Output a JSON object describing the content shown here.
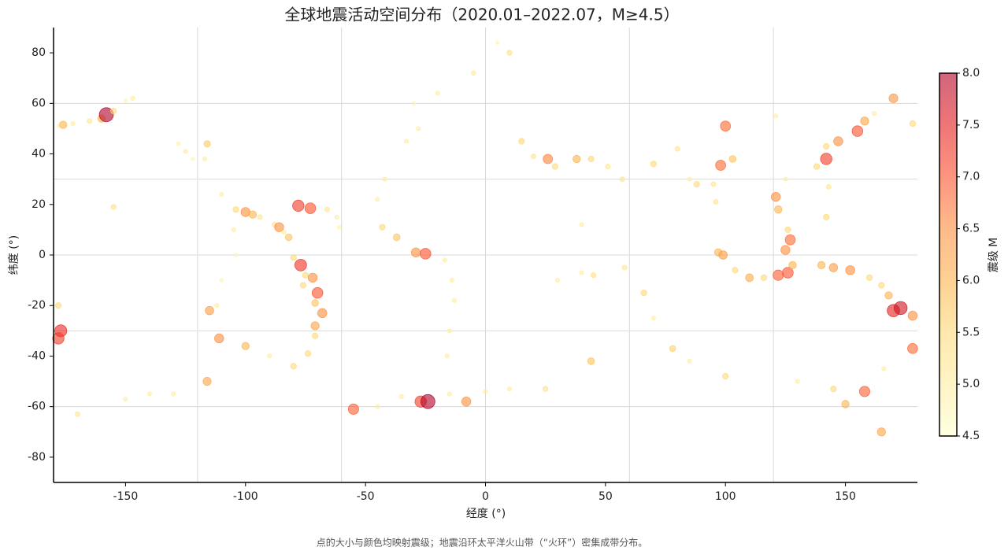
{
  "chart_data": {
    "type": "scatter",
    "title": "全球地震活动空间分布（2020.01–2022.07，M≥4.5）",
    "xlabel": "经度 (°)",
    "ylabel": "纬度 (°)",
    "caption": "点的大小与颜色均映射震级；地震沿环太平洋火山带（“火环”）密集成带分布。",
    "xlim": [
      -180,
      180
    ],
    "ylim": [
      -90,
      90
    ],
    "xticks": [
      -150,
      -100,
      -50,
      0,
      50,
      100,
      150
    ],
    "yticks": [
      -80,
      -60,
      -40,
      -20,
      0,
      20,
      40,
      60,
      80
    ],
    "xgrid": [
      -120,
      -60,
      0,
      60,
      120
    ],
    "ygrid": [
      -60,
      -30,
      0,
      30,
      60
    ],
    "grid": true,
    "colorbar_label": "震级 M",
    "clim": [
      4.5,
      8
    ],
    "cticks": [
      4.5,
      {
        "value": 5,
        "label": "5.0"
      },
      5.5,
      {
        "value": 6,
        "label": "6.0"
      },
      6.5,
      {
        "value": 7,
        "label": "7.0"
      },
      7.5,
      {
        "value": 8,
        "label": "8.0"
      }
    ],
    "colormap": [
      "#ffffcc",
      "#ffeda0",
      "#fed976",
      "#feb24c",
      "#fd8d3c",
      "#fc4e2a",
      "#e31a1c",
      "#b10026"
    ],
    "alpha": 0.6,
    "x": [
      -178,
      -172,
      -165,
      -160,
      -158,
      -155,
      -150,
      -147,
      -155,
      -125,
      -122,
      -128,
      -116,
      -117,
      -110,
      -104,
      -100,
      -97,
      -94,
      -88,
      -86,
      -84,
      -82,
      -78,
      -73,
      -66,
      -62,
      -61,
      -105,
      -104,
      -110,
      -112,
      -115,
      -111,
      -100,
      -90,
      -80,
      -116,
      -80,
      -77,
      -75,
      -76,
      -70,
      -71,
      -68,
      -71,
      -71,
      -74,
      -72,
      -55,
      -45,
      -35,
      -27,
      -24,
      -8,
      -15,
      -150,
      -140,
      -130,
      -170,
      -30,
      -20,
      -28,
      -33,
      -42,
      -45,
      -43,
      -37,
      -29,
      -25,
      -17,
      -14,
      -13,
      -15,
      -16,
      0,
      10,
      25,
      10,
      5,
      -5,
      15,
      20,
      26,
      29,
      38,
      44,
      51,
      57,
      70,
      80,
      88,
      95,
      98,
      103,
      85,
      96,
      40,
      45,
      58,
      66,
      70,
      78,
      85,
      100,
      130,
      145,
      150,
      44,
      30,
      40,
      97,
      99,
      104,
      110,
      116,
      122,
      126,
      128,
      125,
      127,
      126,
      122,
      121,
      125,
      138,
      142,
      142,
      147,
      155,
      158,
      162,
      140,
      145,
      152,
      160,
      165,
      168,
      170,
      173,
      178,
      -178,
      -177,
      -178,
      178,
      166,
      165,
      158,
      142,
      143,
      100,
      121,
      170,
      178,
      -176
    ],
    "y": [
      51,
      52,
      53,
      54,
      55.5,
      57,
      61,
      62,
      19,
      41,
      38,
      44,
      44,
      38,
      24,
      18,
      17,
      16,
      15,
      12,
      11,
      9,
      7,
      19.5,
      18.5,
      18,
      15,
      11,
      10,
      0,
      -10,
      -20,
      -22,
      -33,
      -36,
      -40,
      -44,
      -50,
      -1,
      -4,
      -8,
      -12,
      -15,
      -19,
      -23,
      -28,
      -32,
      -39,
      -9,
      -61,
      -60,
      -56,
      -58,
      -58,
      -58,
      -55,
      -57,
      -55,
      -55,
      -63,
      60,
      64,
      50,
      45,
      30,
      22,
      11,
      7,
      1,
      0.5,
      -2,
      -10,
      -18,
      -30,
      -40,
      -54,
      -53,
      -53,
      80,
      84,
      72,
      45,
      39,
      38,
      35,
      38,
      38,
      35,
      30,
      36,
      42,
      28,
      28,
      35.5,
      38,
      30,
      21,
      -7,
      -8,
      -5,
      -15,
      -25,
      -37,
      -42,
      -48,
      -50,
      -53,
      -59,
      -42,
      -10,
      12,
      1,
      0,
      -6,
      -9,
      -9,
      -8,
      -7,
      -4,
      2,
      6,
      10,
      18,
      23,
      30,
      35,
      38,
      43,
      45,
      49,
      53,
      56,
      -4,
      -5,
      -6,
      -9,
      -12,
      -16,
      -22,
      -21,
      -24,
      -20,
      -30,
      -33,
      -37,
      -45,
      -70,
      -54,
      15,
      27,
      51,
      55,
      62,
      52,
      51.5
    ],
    "magnitude": [
      4.8,
      5.0,
      5.2,
      6.0,
      8.0,
      5.5,
      4.8,
      5.0,
      5.3,
      5.0,
      4.8,
      4.9,
      5.7,
      5.0,
      5.0,
      5.5,
      6.5,
      6.0,
      5.2,
      5.2,
      6.5,
      5.0,
      5.8,
      7.2,
      7.0,
      5.2,
      5.0,
      4.9,
      5.0,
      4.8,
      4.8,
      5.0,
      6.3,
      6.5,
      6.0,
      5.0,
      5.5,
      6.2,
      5.5,
      7.3,
      5.5,
      5.5,
      7.0,
      5.8,
      6.5,
      6.2,
      5.5,
      5.5,
      6.5,
      6.9,
      5.0,
      5.0,
      7.2,
      8.0,
      6.5,
      5.0,
      5.0,
      5.0,
      5.0,
      5.2,
      4.8,
      5.0,
      5.0,
      5.0,
      5.0,
      5.0,
      5.5,
      5.8,
      6.5,
      7.0,
      5.0,
      5.0,
      5.0,
      5.0,
      5.0,
      5.0,
      5.0,
      5.3,
      5.3,
      4.8,
      5.1,
      5.5,
      5.2,
      6.6,
      5.5,
      6.0,
      5.5,
      5.2,
      5.2,
      5.5,
      5.2,
      5.5,
      5.2,
      6.8,
      5.8,
      5.0,
      5.2,
      5.0,
      5.3,
      5.2,
      5.5,
      5.0,
      5.6,
      5.0,
      5.5,
      5.0,
      5.5,
      6.0,
      5.8,
      5.0,
      5.0,
      6.0,
      6.3,
      5.5,
      6.1,
      5.5,
      6.9,
      7.0,
      6.0,
      6.5,
      6.8,
      5.5,
      6.0,
      6.5,
      5.0,
      5.5,
      7.2,
      5.5,
      6.5,
      7.0,
      6.2,
      5.0,
      6.0,
      6.3,
      6.5,
      5.5,
      5.5,
      6.0,
      7.5,
      7.7,
      6.5,
      5.5,
      7.4,
      7.2,
      6.8,
      5.0,
      6.2,
      6.9,
      5.5,
      5.2,
      6.8,
      5.0,
      6.4,
      5.5,
      6.0
    ]
  }
}
